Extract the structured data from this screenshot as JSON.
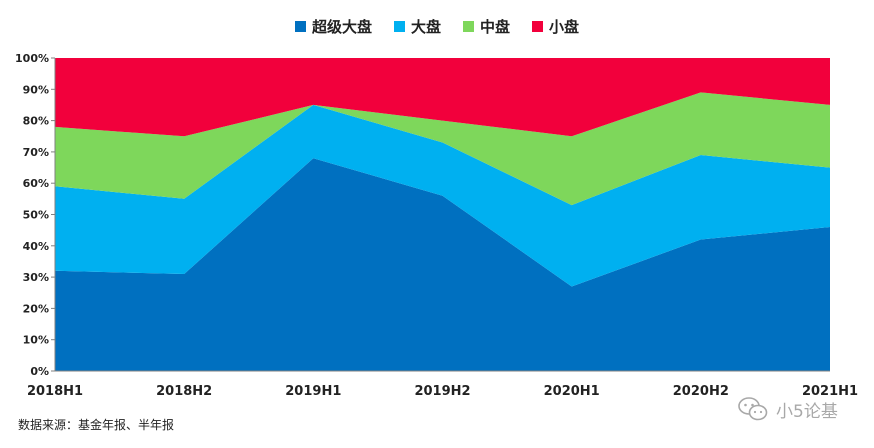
{
  "chart_data": {
    "type": "area",
    "stacked": true,
    "percent": true,
    "title": "",
    "xlabel": "",
    "ylabel": "",
    "categories": [
      "2018H1",
      "2018H2",
      "2019H1",
      "2019H2",
      "2020H1",
      "2020H2",
      "2021H1"
    ],
    "ylim": [
      0,
      100
    ],
    "yticks": [
      0,
      10,
      20,
      30,
      40,
      50,
      60,
      70,
      80,
      90,
      100
    ],
    "ytick_labels": [
      "0%",
      "10%",
      "20%",
      "30%",
      "40%",
      "50%",
      "60%",
      "70%",
      "80%",
      "90%",
      "100%"
    ],
    "grid": false,
    "legend_position": "top-center",
    "series": [
      {
        "name": "超级大盘",
        "color": "#0070C0",
        "values": [
          32,
          31,
          68,
          56,
          27,
          42,
          46
        ]
      },
      {
        "name": "大盘",
        "color": "#00B0F0",
        "values": [
          27,
          24,
          17,
          17,
          26,
          27,
          19
        ]
      },
      {
        "name": "中盘",
        "color": "#7ED75B",
        "values": [
          19,
          20,
          0,
          7,
          22,
          20,
          20
        ]
      },
      {
        "name": "小盘",
        "color": "#F2003C",
        "values": [
          22,
          25,
          15,
          20,
          25,
          11,
          15
        ]
      }
    ]
  },
  "footer": {
    "source": "数据来源：基金年报、半年报"
  },
  "watermark": {
    "text": "小5论基",
    "icon": "wechat-icon"
  }
}
